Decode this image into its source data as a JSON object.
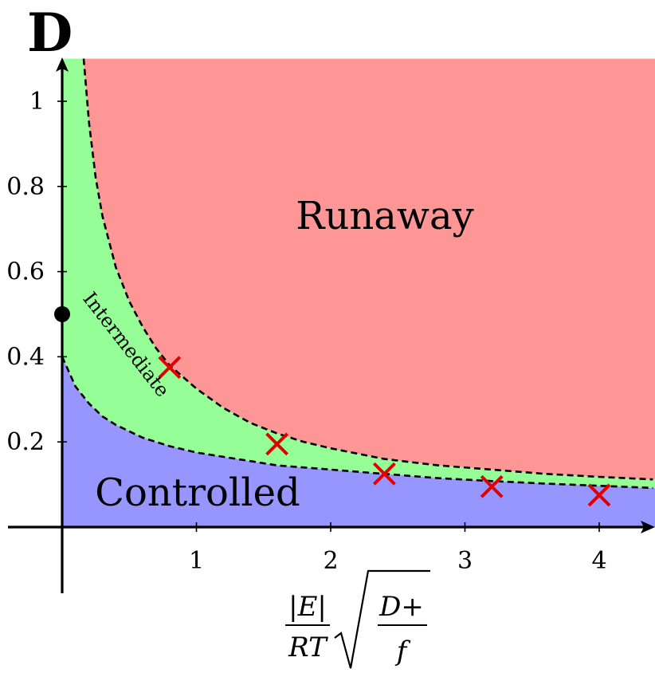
{
  "panel_label": "D",
  "colors": {
    "runaway": "#fe9696",
    "intermediate": "#96fe96",
    "controlled": "#9696fe",
    "boundary": "#000000",
    "marker": "#e00000",
    "axis": "#000000"
  },
  "chart_data": {
    "type": "area",
    "title": "",
    "xlabel": {
      "numerator": "|E|",
      "denominator": "RT",
      "sqrt_numerator": "D+",
      "sqrt_denominator": "f"
    },
    "ylabel": "",
    "xlim": [
      -0.4,
      4.4
    ],
    "ylim": [
      -0.16,
      1.1
    ],
    "x_ticks": [
      1,
      2,
      3,
      4
    ],
    "x_tick_labels": [
      "1",
      "2",
      "3",
      "4"
    ],
    "y_ticks": [
      0.2,
      0.4,
      0.6,
      0.8,
      1.0
    ],
    "y_tick_labels": [
      "0.2",
      "0.4",
      "0.6",
      "0.8",
      "1"
    ],
    "grid": false,
    "regions": [
      {
        "name": "Runaway",
        "label": "Runaway"
      },
      {
        "name": "Intermediate",
        "label": "Intermediate"
      },
      {
        "name": "Controlled",
        "label": "Controlled"
      }
    ],
    "upper_boundary": {
      "x": [
        0.16,
        0.2,
        0.25,
        0.3,
        0.4,
        0.5,
        0.6,
        0.7,
        0.8,
        1.0,
        1.2,
        1.4,
        1.6,
        1.8,
        2.0,
        2.4,
        2.8,
        3.2,
        3.6,
        4.0,
        4.4
      ],
      "y": [
        1.1,
        0.95,
        0.82,
        0.73,
        0.61,
        0.53,
        0.47,
        0.42,
        0.38,
        0.325,
        0.28,
        0.245,
        0.22,
        0.2,
        0.185,
        0.16,
        0.145,
        0.135,
        0.125,
        0.118,
        0.112
      ]
    },
    "lower_boundary": {
      "x": [
        0.0,
        0.1,
        0.2,
        0.3,
        0.4,
        0.5,
        0.6,
        0.8,
        1.0,
        1.2,
        1.4,
        1.6,
        1.8,
        2.0,
        2.4,
        2.8,
        3.2,
        3.6,
        4.0,
        4.4
      ],
      "y": [
        0.4,
        0.33,
        0.29,
        0.26,
        0.24,
        0.225,
        0.21,
        0.19,
        0.175,
        0.165,
        0.155,
        0.145,
        0.14,
        0.135,
        0.125,
        0.115,
        0.108,
        0.102,
        0.097,
        0.092
      ]
    },
    "intermediate_top_at_zero": {
      "x": 0.0,
      "y": 1.1
    },
    "dot": {
      "x": 0.0,
      "y": 0.5
    },
    "markers": {
      "x": [
        0.8,
        1.6,
        2.4,
        3.2,
        4.0
      ],
      "y": [
        0.375,
        0.195,
        0.125,
        0.095,
        0.075
      ]
    }
  }
}
